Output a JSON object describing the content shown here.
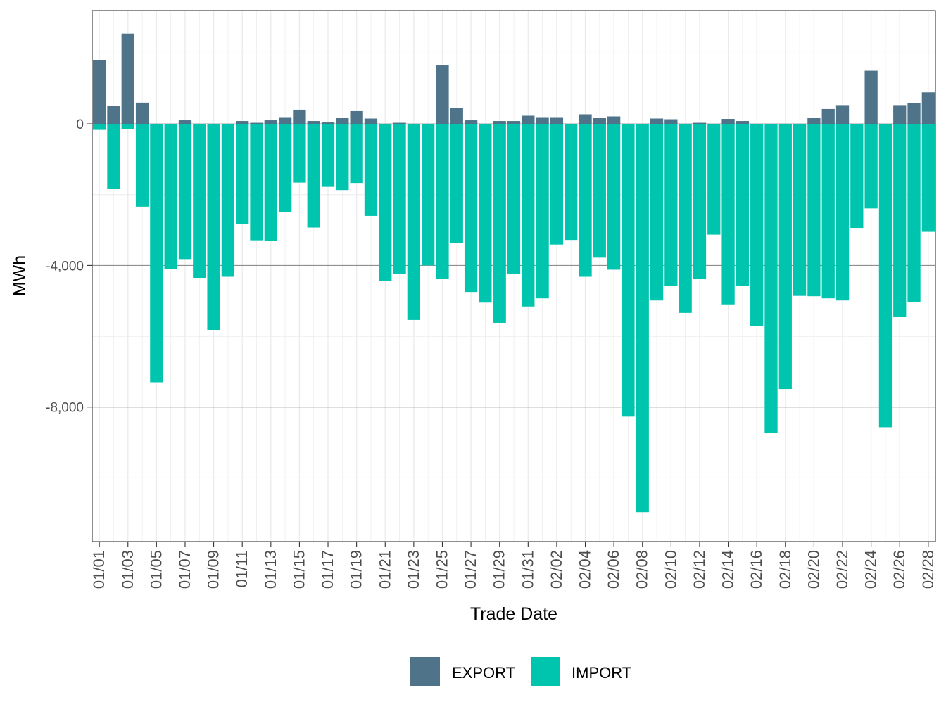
{
  "chart_data": {
    "type": "bar",
    "stacking": "diverging",
    "xlabel": "Trade Date",
    "ylabel": "MWh",
    "ylim": [
      -11800,
      3200
    ],
    "y_ticks": [
      {
        "value": 0,
        "label": "0"
      },
      {
        "value": -4000,
        "label": "-4,000"
      },
      {
        "value": -8000,
        "label": "-8,000"
      }
    ],
    "categories": [
      "01/01",
      "01/02",
      "01/03",
      "01/04",
      "01/05",
      "01/06",
      "01/07",
      "01/08",
      "01/09",
      "01/10",
      "01/11",
      "01/12",
      "01/13",
      "01/14",
      "01/15",
      "01/16",
      "01/17",
      "01/18",
      "01/19",
      "01/20",
      "01/21",
      "01/22",
      "01/23",
      "01/24",
      "01/25",
      "01/26",
      "01/27",
      "01/28",
      "01/29",
      "01/30",
      "01/31",
      "02/01",
      "02/02",
      "02/03",
      "02/04",
      "02/05",
      "02/06",
      "02/07",
      "02/08",
      "02/09",
      "02/10",
      "02/11",
      "02/12",
      "02/13",
      "02/14",
      "02/15",
      "02/16",
      "02/17",
      "02/18",
      "02/19",
      "02/20",
      "02/21",
      "02/22",
      "02/23",
      "02/24",
      "02/25",
      "02/26",
      "02/27",
      "02/28"
    ],
    "x_tick_labels": [
      "01/01",
      "01/03",
      "01/05",
      "01/07",
      "01/09",
      "01/11",
      "01/13",
      "01/15",
      "01/17",
      "01/19",
      "01/21",
      "01/23",
      "01/25",
      "01/27",
      "01/29",
      "01/31",
      "02/02",
      "02/04",
      "02/06",
      "02/08",
      "02/10",
      "02/12",
      "02/14",
      "02/16",
      "02/18",
      "02/20",
      "02/22",
      "02/24",
      "02/26",
      "02/28"
    ],
    "series": [
      {
        "name": "EXPORT",
        "color": "#4f7389",
        "values": [
          1800,
          500,
          2550,
          600,
          0,
          0,
          100,
          0,
          0,
          0,
          80,
          30,
          100,
          170,
          400,
          80,
          40,
          160,
          360,
          150,
          0,
          30,
          0,
          0,
          1650,
          440,
          100,
          0,
          80,
          80,
          230,
          170,
          170,
          0,
          270,
          160,
          210,
          0,
          0,
          150,
          130,
          0,
          30,
          0,
          140,
          80,
          0,
          0,
          0,
          0,
          160,
          420,
          530,
          0,
          1500,
          0,
          530,
          590,
          890
        ]
      },
      {
        "name": "IMPORT",
        "color": "#00c5ae",
        "values": [
          -170,
          -1840,
          -150,
          -2340,
          -7300,
          -4100,
          -3820,
          -4350,
          -5820,
          -4320,
          -2840,
          -3290,
          -3310,
          -2490,
          -1660,
          -2930,
          -1780,
          -1870,
          -1670,
          -2600,
          -4430,
          -4230,
          -5540,
          -4000,
          -4380,
          -3360,
          -4750,
          -5050,
          -5620,
          -4230,
          -5160,
          -4930,
          -3410,
          -3280,
          -4320,
          -3780,
          -4120,
          -8270,
          -10970,
          -4990,
          -4580,
          -5340,
          -4380,
          -3130,
          -5100,
          -4580,
          -5720,
          -8740,
          -7490,
          -4860,
          -4870,
          -4930,
          -4990,
          -2940,
          -2390,
          -8570,
          -5460,
          -5030,
          -3050
        ]
      }
    ],
    "legend": {
      "position": "bottom",
      "items": [
        "EXPORT",
        "IMPORT"
      ]
    }
  }
}
